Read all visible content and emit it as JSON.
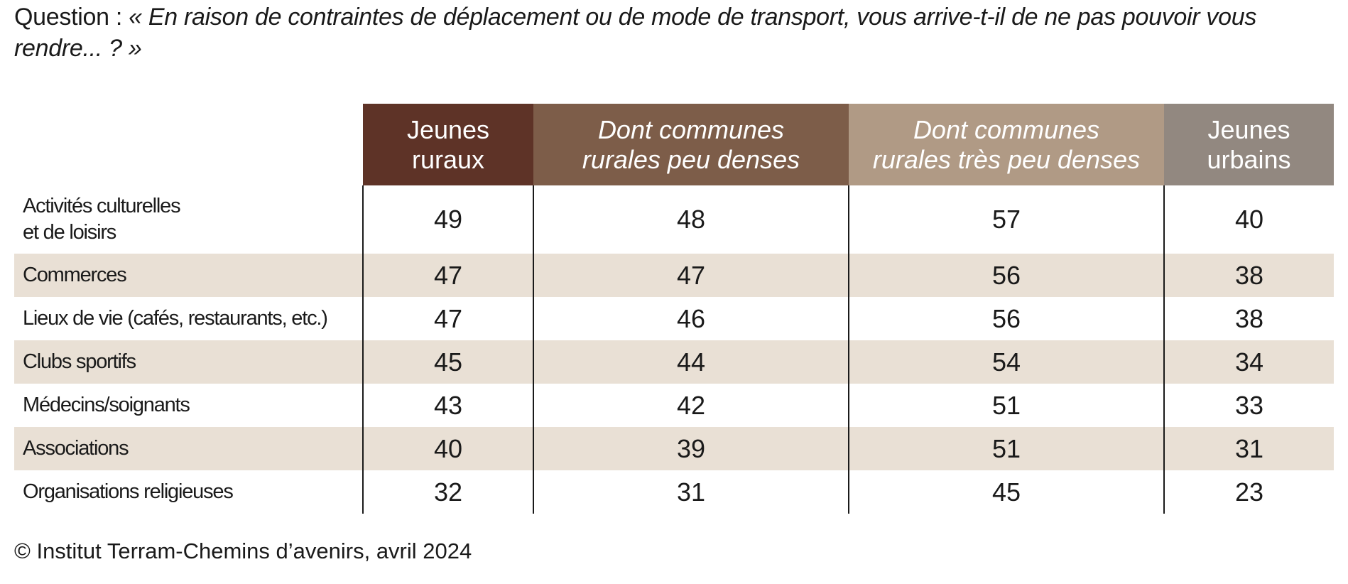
{
  "question": {
    "prefix": "Question : ",
    "text": "« En raison de contraintes de déplacement ou de mode de transport, vous arrive-t-il de ne pas pouvoir vous rendre... ? »"
  },
  "colors": {
    "jeunes_ruraux": "#5e3327",
    "communes_peu_denses": "#7d5d49",
    "communes_tres_peu_denses": "#b09a85",
    "jeunes_urbains": "#928880",
    "row_shade": "#e9e0d5"
  },
  "chart_data": {
    "type": "table",
    "columns": [
      {
        "line1": "Jeunes",
        "line2": "ruraux",
        "italic": false
      },
      {
        "line1": "Dont communes",
        "line2": "rurales peu denses",
        "italic": true
      },
      {
        "line1": "Dont communes",
        "line2": "rurales très peu denses",
        "italic": true
      },
      {
        "line1": "Jeunes",
        "line2": "urbains",
        "italic": false
      }
    ],
    "rows": [
      {
        "label1": "Activités culturelles",
        "label2": "et de loisirs",
        "values": [
          "49",
          "48",
          "57",
          "40"
        ]
      },
      {
        "label1": "Commerces",
        "label2": "",
        "values": [
          "47",
          "47",
          "56",
          "38"
        ]
      },
      {
        "label1": "Lieux de vie (cafés, restaurants, etc.)",
        "label2": "",
        "values": [
          "47",
          "46",
          "56",
          "38"
        ]
      },
      {
        "label1": "Clubs sportifs",
        "label2": "",
        "values": [
          "45",
          "44",
          "54",
          "34"
        ]
      },
      {
        "label1": "Médecins/soignants",
        "label2": "",
        "values": [
          "43",
          "42",
          "51",
          "33"
        ]
      },
      {
        "label1": "Associations",
        "label2": "",
        "values": [
          "40",
          "39",
          "51",
          "31"
        ]
      },
      {
        "label1": "Organisations religieuses",
        "label2": "",
        "values": [
          "32",
          "31",
          "45",
          "23"
        ]
      }
    ]
  },
  "footer": "© Institut Terram-Chemins d’avenirs, avril 2024"
}
